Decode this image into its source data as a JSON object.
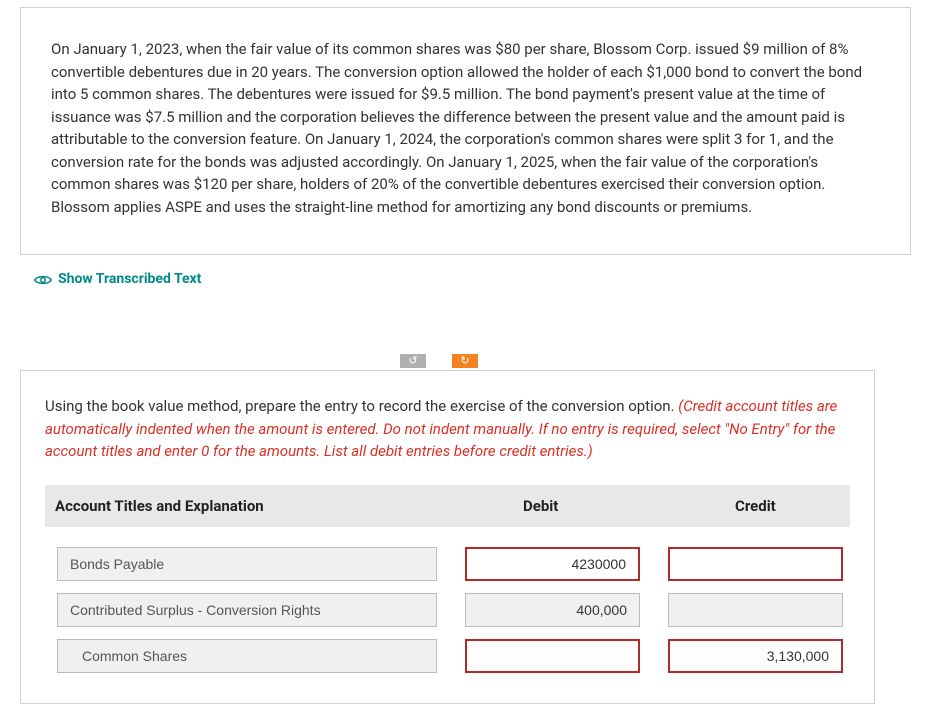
{
  "colors": {
    "teal": "#008a8a",
    "orange": "#f58220",
    "gray": "#b0b0b0",
    "red": "#d93025",
    "redBorder": "#b02a2a",
    "headerBg": "#e8e8e8",
    "inputGray": "#f0f0f0",
    "border": "#d0d0d0"
  },
  "problem": {
    "text": "On January 1, 2023, when the fair value of its common shares was $80 per share, Blossom Corp. issued $9 million of 8% convertible debentures due in 20 years. The conversion option allowed the holder of each $1,000 bond to convert the bond into 5 common shares. The debentures were issued for $9.5 million. The bond payment's present value at the time of issuance was $7.5 million and the corporation believes the difference between the present value and the amount paid is attributable to the conversion feature. On January 1, 2024, the corporation's common shares were split 3 for 1, and the conversion rate for the bonds was adjusted accordingly. On January 1, 2025, when the fair value of the corporation's common shares was $120 per share, holders of 20% of the convertible debentures exercised their conversion option. Blossom applies ASPE and uses the straight-line method for amortizing any bond discounts or premiums."
  },
  "transcribed": {
    "label": "Show Transcribed Text"
  },
  "answer": {
    "instruction_plain": "Using the book value method, prepare the entry to record the exercise of the conversion option. ",
    "instruction_red": "(Credit account titles are automatically indented when the amount is entered. Do not indent manually. If no entry is required, select \"No Entry\" for the account titles and enter 0 for the amounts. List all debit entries before credit entries.)",
    "headers": {
      "account": "Account Titles and Explanation",
      "debit": "Debit",
      "credit": "Credit"
    },
    "rows": [
      {
        "account": "Bonds Payable",
        "debit": "4230000",
        "credit": "",
        "debitHighlight": true,
        "creditHighlight": true,
        "creditGrayed": false
      },
      {
        "account": "Contributed Surplus - Conversion Rights",
        "debit": "400,000",
        "credit": "",
        "debitHighlight": false,
        "creditHighlight": false,
        "creditGrayed": true,
        "debitGrayed": true
      },
      {
        "account": "Common Shares",
        "debit": "",
        "credit": "3,130,000",
        "debitHighlight": true,
        "creditHighlight": true,
        "accountIndent": true
      }
    ]
  },
  "icons": {
    "undo": "↺",
    "redo": "↻"
  }
}
